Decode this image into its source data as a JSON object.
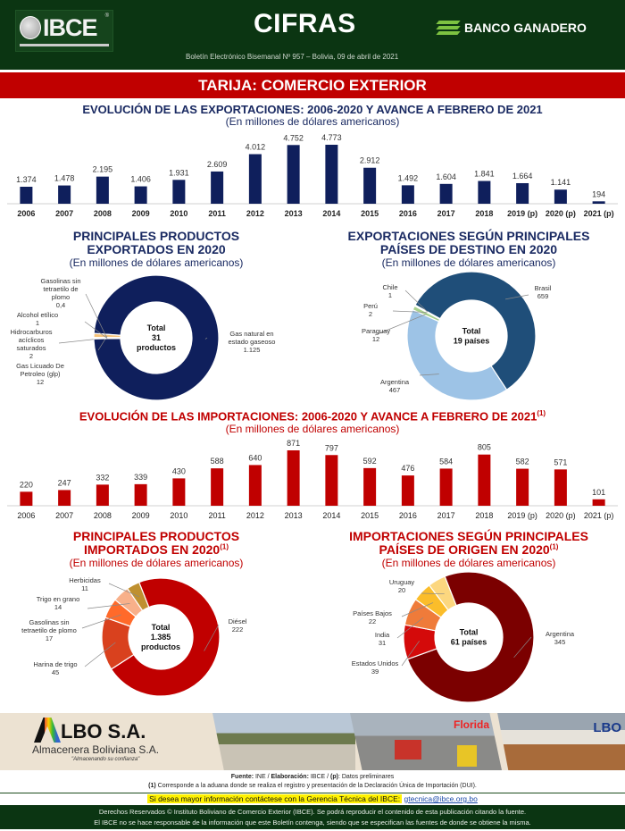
{
  "header": {
    "ibce_logo_text": "IBCE",
    "ibce_reg": "®",
    "title": "CIFRAS",
    "sponsor": "BANCO GANADERO",
    "boletin": "Boletín Electrónico Bisemanal Nº 957 – Bolivia, 09 de abril de 2021"
  },
  "banner": "TARIJA: COMERCIO EXTERIOR",
  "colors": {
    "header_green": "#0b3512",
    "banner_red": "#c00000",
    "export_navy": "#0f1f5c",
    "import_red": "#c00000"
  },
  "chart_data": [
    {
      "type": "bar",
      "title": "EVOLUCIÓN DE LAS EXPORTACIONES: 2006-2020 Y AVANCE A FEBRERO DE 2021",
      "subtitle": "(En millones de dólares americanos)",
      "categories": [
        "2006",
        "2007",
        "2008",
        "2009",
        "2010",
        "2011",
        "2012",
        "2013",
        "2014",
        "2015",
        "2016",
        "2017",
        "2018",
        "2019 (p)",
        "2020 (p)",
        "2021 (p)"
      ],
      "values": [
        1374,
        1478,
        2195,
        1406,
        1931,
        2609,
        4012,
        4752,
        4773,
        2912,
        1492,
        1604,
        1841,
        1664,
        1141,
        194
      ],
      "labels": [
        "1.374",
        "1.478",
        "2.195",
        "1.406",
        "1.931",
        "2.609",
        "4.012",
        "4.752",
        "4.773",
        "2.912",
        "1.492",
        "1.604",
        "1.841",
        "1.664",
        "1.141",
        "194"
      ],
      "ylim": [
        0,
        4773
      ],
      "color": "#0f1f5c",
      "grid": false
    },
    {
      "type": "pie",
      "title_line1": "PRINCIPALES PRODUCTOS",
      "title_line2": "EXPORTADOS EN 2020",
      "subtitle": "(En millones de dólares americanos)",
      "center": [
        "Total",
        "31",
        "productos"
      ],
      "slices": [
        {
          "name": "Gas natural en estado gaseoso",
          "label_lines": [
            "Gas natural en",
            "estado gaseoso",
            "1.125"
          ],
          "value": 1125,
          "color": "#0f1f5c"
        },
        {
          "name": "Gas Licuado De Petroleo (glp)",
          "label_lines": [
            "Gas Licuado De",
            "Petroleo (glp)",
            "12"
          ],
          "value": 12,
          "color": "#f4c27a"
        },
        {
          "name": "Hidrocarburos acíclicos saturados",
          "label_lines": [
            "Hidrocarburos",
            "acíclicos",
            "saturados",
            "2"
          ],
          "value": 2,
          "color": "#d9d9d9"
        },
        {
          "name": "Alcohol etílico",
          "label_lines": [
            "Alcohol etílico",
            "1"
          ],
          "value": 1,
          "color": "#a6a6a6"
        },
        {
          "name": "Gasolinas sin tetraetilo de plomo",
          "label_lines": [
            "Gasolinas sin",
            "tetraetilo de",
            "plomo",
            "0,4"
          ],
          "value": 0.4,
          "color": "#7f7f7f"
        }
      ]
    },
    {
      "type": "pie",
      "title_line1": "EXPORTACIONES SEGÚN PRINCIPALES",
      "title_line2": "PAÍSES DE DESTINO EN 2020",
      "subtitle": "(En millones de dólares americanos)",
      "center": [
        "Total",
        "19 países"
      ],
      "slices": [
        {
          "name": "Brasil",
          "label_lines": [
            "Brasil",
            "659"
          ],
          "value": 659,
          "color": "#1f4e79"
        },
        {
          "name": "Argentina",
          "label_lines": [
            "Argentina",
            "467"
          ],
          "value": 467,
          "color": "#9dc3e6"
        },
        {
          "name": "Paraguay",
          "label_lines": [
            "Paraguay",
            "12"
          ],
          "value": 12,
          "color": "#a9d18e"
        },
        {
          "name": "Perú",
          "label_lines": [
            "Perú",
            "2"
          ],
          "value": 2,
          "color": "#70ad47"
        },
        {
          "name": "Chile",
          "label_lines": [
            "Chile",
            "1"
          ],
          "value": 1,
          "color": "#548235"
        }
      ]
    },
    {
      "type": "bar",
      "title": "EVOLUCIÓN DE LAS IMPORTACIONES: 2006-2020 Y AVANCE A FEBRERO DE 2021",
      "title_sup": "(1)",
      "subtitle": "(En millones de dólares americanos)",
      "categories": [
        "2006",
        "2007",
        "2008",
        "2009",
        "2010",
        "2011",
        "2012",
        "2013",
        "2014",
        "2015",
        "2016",
        "2017",
        "2018",
        "2019 (p)",
        "2020 (p)",
        "2021 (p)"
      ],
      "values": [
        220,
        247,
        332,
        339,
        430,
        588,
        640,
        871,
        797,
        592,
        476,
        584,
        805,
        582,
        571,
        101
      ],
      "labels": [
        "220",
        "247",
        "332",
        "339",
        "430",
        "588",
        "640",
        "871",
        "797",
        "592",
        "476",
        "584",
        "805",
        "582",
        "571",
        "101"
      ],
      "ylim": [
        0,
        871
      ],
      "color": "#c00000",
      "grid": false
    },
    {
      "type": "pie",
      "title_line1": "PRINCIPALES PRODUCTOS",
      "title_line2": "IMPORTADOS EN 2020",
      "title_sup": "(1)",
      "subtitle": "(En millones de dólares americanos)",
      "center": [
        "Total",
        "1.385",
        "productos"
      ],
      "slices": [
        {
          "name": "Diésel",
          "label_lines": [
            "Diésel",
            "222"
          ],
          "value": 222,
          "color": "#c00000"
        },
        {
          "name": "Harina de trigo",
          "label_lines": [
            "Harina de trigo",
            "45"
          ],
          "value": 45,
          "color": "#d9411e"
        },
        {
          "name": "Gasolinas sin tetraetilo de plomo",
          "label_lines": [
            "Gasolinas sin",
            "tetraetilo de plomo",
            "17"
          ],
          "value": 17,
          "color": "#ff6a2a"
        },
        {
          "name": "Trigo en grano",
          "label_lines": [
            "Trigo en grano",
            "14"
          ],
          "value": 14,
          "color": "#f8b08a"
        },
        {
          "name": "Herbicidas",
          "label_lines": [
            "Herbicidas",
            "11"
          ],
          "value": 11,
          "color": "#bf9030"
        }
      ]
    },
    {
      "type": "pie",
      "title_line1": "IMPORTACIONES SEGÚN PRINCIPALES",
      "title_line2": "PAÍSES DE ORIGEN EN 2020",
      "title_sup": "(1)",
      "subtitle": "(En millones de dólares americanos)",
      "center": [
        "Total",
        "61 países"
      ],
      "slices": [
        {
          "name": "Argentina",
          "label_lines": [
            "Argentina",
            "345"
          ],
          "value": 345,
          "color": "#7b0000"
        },
        {
          "name": "Estados Unidos",
          "label_lines": [
            "Estados Unidos",
            "39"
          ],
          "value": 39,
          "color": "#d40a0a"
        },
        {
          "name": "India",
          "label_lines": [
            "India",
            "31"
          ],
          "value": 31,
          "color": "#ef7b3a"
        },
        {
          "name": "Países Bajos",
          "label_lines": [
            "Países Bajos",
            "22"
          ],
          "value": 22,
          "color": "#fbbd2a"
        },
        {
          "name": "Uruguay",
          "label_lines": [
            "Uruguay",
            "20"
          ],
          "value": 20,
          "color": "#fcd77f"
        }
      ]
    }
  ],
  "sponsor_banner": {
    "brand": "LBO S.A.",
    "company": "Almacenera Boliviana S.A.",
    "slogan": "\"Almacenando su confianza\"",
    "photo_sign": "Florida"
  },
  "footer": {
    "fuente_label": "Fuente:",
    "fuente_text": " INE / ",
    "elaboracion_label": "Elaboración:",
    "elaboracion_text": " IBCE / ",
    "p_label": "(p)",
    "p_text": ": Datos preliminares",
    "nota_label": "(1)",
    "nota_text": " Corresponde a la aduana donde se realiza el registro y presentación de la Declaración Única de Importación (DUI).",
    "contact_text": "Si desea mayor información contáctese con la Gerencia Técnica del IBCE:",
    "contact_email": "gtecnica@ibce.org.bo",
    "copyright_line1": "Derechos Reservados © Instituto Boliviano de Comercio Exterior (IBCE). Se podrá reproducir el contenido de esta publicación citando la fuente.",
    "copyright_line2": "El IBCE no se hace responsable de la información que este Boletín contenga, siendo que se especifican las fuentes de donde se obtiene la misma."
  }
}
